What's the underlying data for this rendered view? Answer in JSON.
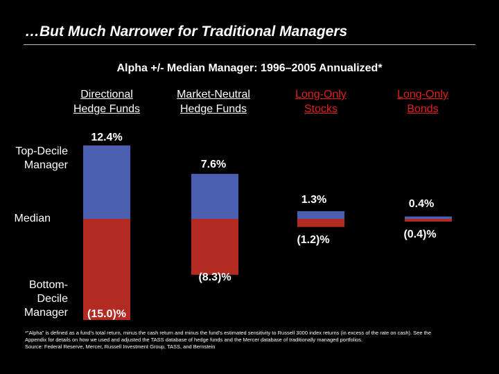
{
  "title": "…But Much Narrower for Traditional Managers",
  "row_labels": {
    "top": [
      "Top-Decile",
      "Manager"
    ],
    "median": "Median",
    "bottom": [
      "Bottom-",
      "Decile",
      "Manager"
    ]
  },
  "colors": {
    "positive": "#4a5fb0",
    "negative": "#b22a22",
    "text": "#ffffff",
    "background": "#000000"
  },
  "chart_data": {
    "type": "bar",
    "title": "Alpha +/- Median Manager: 1996–2005 Annualized*",
    "categories": [
      [
        "Directional",
        "Hedge Funds"
      ],
      [
        "Market-Neutral",
        "Hedge Funds"
      ],
      [
        "Long-Only",
        "Stocks"
      ],
      [
        "Long-Only",
        "Bonds"
      ]
    ],
    "category_colors": [
      "#ffffff",
      "#ffffff",
      "#e02020",
      "#e02020"
    ],
    "series": [
      {
        "name": "Top-Decile Manager",
        "values": [
          12.4,
          7.6,
          1.3,
          0.4
        ],
        "labels": [
          "12.4%",
          "7.6%",
          "1.3%",
          "0.4%"
        ]
      },
      {
        "name": "Bottom-Decile Manager",
        "values": [
          -15.0,
          -8.3,
          -1.2,
          -0.4
        ],
        "labels": [
          "(15.0)%",
          "(8.3)%",
          "(1.2)%",
          "(0.4)%"
        ]
      }
    ],
    "ylim": [
      -15.0,
      12.4
    ],
    "baseline": "Median"
  },
  "footnote": {
    "lines": [
      "*\"Alpha\" is defined as a fund's total return, minus the cash return and minus the fund's estimated sensitivity to Russell 3000 index returns (in excess of the rate on cash). See the",
      "Appendix for details on how we used and adjusted the TASS database of hedge funds and the Mercer database of traditionally managed portfolios.",
      "Source: Federal Reserve, Mercer, Russell Investment Group, TASS, and Bernstein"
    ]
  }
}
